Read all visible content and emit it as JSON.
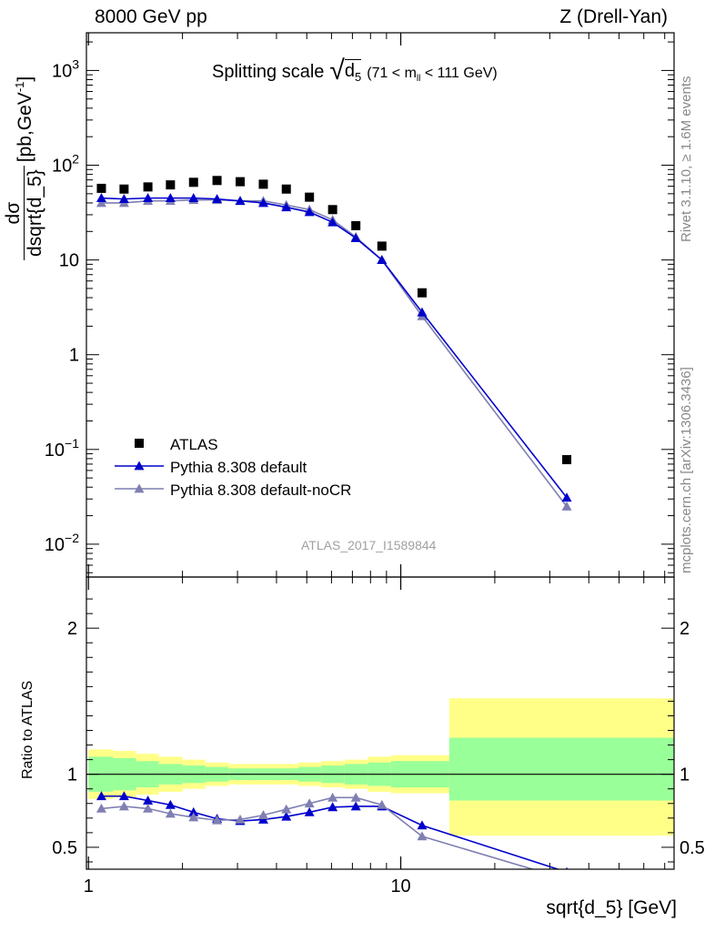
{
  "header": {
    "left": "8000 GeV pp",
    "right": "Z (Drell-Yan)"
  },
  "side_texts": {
    "rivet": "Rivet 3.1.10, ≥ 1.6M events",
    "mcplots": "mcplots.cern.ch [arXiv:1306.3436]"
  },
  "colors": {
    "data": "#000000",
    "default": "#0000cc",
    "noCR": "#7f7fb2",
    "band_outer": "#ffff88",
    "band_inner": "#99ff99"
  },
  "chart_data": [
    {
      "type": "scatter",
      "panel": "main",
      "title": "Splitting scale",
      "title_sqrt": "d",
      "title_sqrt_sub": "5",
      "title_range": "(71 < m",
      "title_range_sub": "ll",
      "title_range_end": "< 111 GeV)",
      "analysis_id": "ATLAS_2017_I1589844",
      "ylabel_num": "dσ",
      "ylabel_den": "dsqrt{d_5}",
      "ylabel_units": "[pb,GeV",
      "ylabel_units_sup": "-1",
      "ylabel_units_end": "]",
      "yscale": "log",
      "xscale": "log",
      "xlim": [
        0.985,
        75
      ],
      "ylim": [
        0.0045,
        2500
      ],
      "yticks": [
        {
          "v": 0.01,
          "base": "10",
          "exp": "−2"
        },
        {
          "v": 0.1,
          "base": "10",
          "exp": "−1"
        },
        {
          "v": 1,
          "base": "1",
          "exp": ""
        },
        {
          "v": 10,
          "base": "10",
          "exp": ""
        },
        {
          "v": 100,
          "base": "10",
          "exp": "2"
        },
        {
          "v": 1000,
          "base": "10",
          "exp": "3"
        }
      ],
      "legend": {
        "placement": "bottom-left",
        "entries": [
          "ATLAS",
          "Pythia 8.308 default",
          "Pythia 8.308 default-noCR"
        ]
      },
      "x": [
        1.1,
        1.3,
        1.55,
        1.83,
        2.17,
        2.58,
        3.06,
        3.63,
        4.3,
        5.1,
        6.05,
        7.18,
        8.7,
        11.7,
        34
      ],
      "series": [
        {
          "name": "ATLAS",
          "marker": "square",
          "values": [
            57,
            56,
            59,
            62,
            66,
            69,
            67,
            63,
            56,
            46,
            34,
            23,
            14,
            4.5,
            0.078
          ]
        },
        {
          "name": "Pythia 8.308 default",
          "marker": "triangle",
          "values": [
            45,
            44,
            45,
            45,
            45,
            44,
            42,
            40,
            36,
            32,
            25,
            17,
            10,
            2.8,
            0.031
          ]
        },
        {
          "name": "Pythia 8.308 default-noCR",
          "marker": "triangle",
          "values": [
            40,
            40,
            42,
            42,
            43,
            43,
            42,
            42,
            38,
            34,
            26.5,
            17.5,
            10,
            2.55,
            0.025
          ]
        }
      ]
    },
    {
      "type": "line",
      "panel": "ratio",
      "ylabel": "Ratio to ATLAS",
      "xlabel": "sqrt{d_5} [GeV]",
      "xscale": "log",
      "xlim": [
        0.985,
        75
      ],
      "ylim": [
        0.35,
        2.35
      ],
      "yticks": [
        0.5,
        1,
        2
      ],
      "ytick_labels": [
        "0.5",
        "1",
        "2"
      ],
      "xticks": [
        1,
        10
      ],
      "xtick_labels": [
        "1",
        "10"
      ],
      "bin_edges": [
        1.0,
        1.2,
        1.42,
        1.68,
        2.0,
        2.37,
        2.81,
        3.34,
        3.96,
        4.7,
        5.57,
        6.61,
        7.84,
        9.3,
        14.3,
        75
      ],
      "band_outer": [
        [
          0.83,
          1.17
        ],
        [
          0.84,
          1.16
        ],
        [
          0.86,
          1.14
        ],
        [
          0.88,
          1.12
        ],
        [
          0.9,
          1.1
        ],
        [
          0.92,
          1.08
        ],
        [
          0.93,
          1.07
        ],
        [
          0.93,
          1.07
        ],
        [
          0.93,
          1.07
        ],
        [
          0.92,
          1.08
        ],
        [
          0.91,
          1.09
        ],
        [
          0.9,
          1.1
        ],
        [
          0.88,
          1.12
        ],
        [
          0.87,
          1.13
        ],
        [
          0.58,
          1.52
        ]
      ],
      "band_inner": [
        [
          0.88,
          1.12
        ],
        [
          0.89,
          1.11
        ],
        [
          0.91,
          1.09
        ],
        [
          0.93,
          1.07
        ],
        [
          0.94,
          1.06
        ],
        [
          0.95,
          1.05
        ],
        [
          0.96,
          1.04
        ],
        [
          0.96,
          1.04
        ],
        [
          0.96,
          1.04
        ],
        [
          0.95,
          1.05
        ],
        [
          0.94,
          1.06
        ],
        [
          0.93,
          1.07
        ],
        [
          0.92,
          1.08
        ],
        [
          0.91,
          1.09
        ],
        [
          0.82,
          1.25
        ]
      ],
      "x": [
        1.1,
        1.3,
        1.55,
        1.83,
        2.17,
        2.58,
        3.06,
        3.63,
        4.3,
        5.1,
        6.05,
        7.18,
        8.7,
        11.7,
        34
      ],
      "series": [
        {
          "name": "Pythia 8.308 default",
          "values": [
            0.85,
            0.85,
            0.82,
            0.79,
            0.74,
            0.695,
            0.68,
            0.69,
            0.71,
            0.74,
            0.775,
            0.78,
            0.78,
            0.65,
            0.33
          ]
        },
        {
          "name": "Pythia 8.308 default-noCR",
          "values": [
            0.765,
            0.78,
            0.765,
            0.73,
            0.705,
            0.685,
            0.69,
            0.72,
            0.76,
            0.8,
            0.84,
            0.84,
            0.79,
            0.575,
            0.28
          ]
        }
      ]
    }
  ]
}
